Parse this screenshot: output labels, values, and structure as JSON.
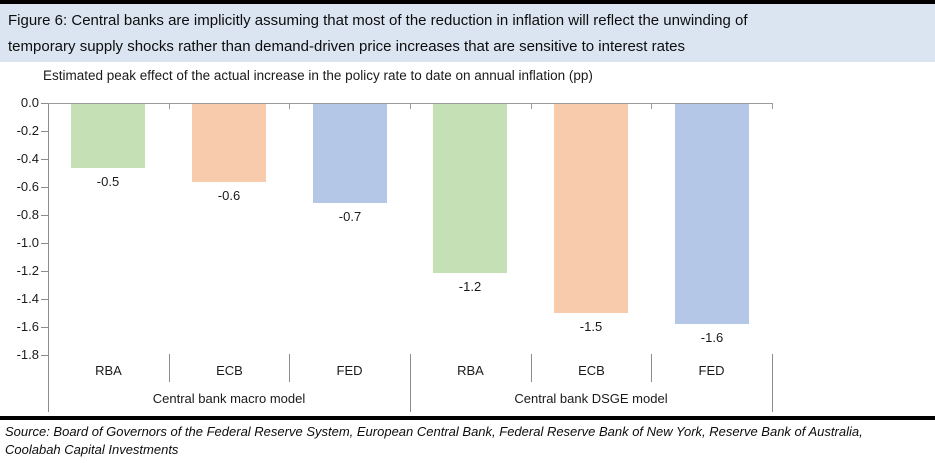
{
  "figure": {
    "title_lines": [
      "Figure 6: Central banks are implicitly assuming that most of the reduction in inflation will reflect the unwinding of",
      "temporary supply shocks rather than demand-driven price increases that are sensitive to interest rates"
    ],
    "source_lines": [
      "Source:  Board of Governors of the Federal Reserve System, European Central Bank, Federal Reserve Bank of New York, Reserve Bank of Australia,",
      "Coolabah Capital Investments"
    ]
  },
  "chart_data": {
    "type": "bar",
    "title": "Estimated peak effect of the actual increase in the policy rate to date on annual inflation (pp)",
    "xlabel": "",
    "ylabel": "",
    "ylim": [
      0,
      -1.8
    ],
    "y_ticks": [
      "0.0",
      "-0.2",
      "-0.4",
      "-0.6",
      "-0.8",
      "-1.0",
      "-1.2",
      "-1.4",
      "-1.6",
      "-1.8"
    ],
    "grid": false,
    "legend": "none",
    "groups": [
      {
        "label": "Central bank macro model",
        "bars": [
          {
            "category": "RBA",
            "value": -0.5,
            "value_label": "-0.5",
            "bar_end": -0.46,
            "color_key": "green"
          },
          {
            "category": "ECB",
            "value": -0.6,
            "value_label": "-0.6",
            "bar_end": -0.56,
            "color_key": "orange"
          },
          {
            "category": "FED",
            "value": -0.7,
            "value_label": "-0.7",
            "bar_end": -0.71,
            "color_key": "blue"
          }
        ]
      },
      {
        "label": "Central bank DSGE model",
        "bars": [
          {
            "category": "RBA",
            "value": -1.2,
            "value_label": "-1.2",
            "bar_end": -1.21,
            "color_key": "green"
          },
          {
            "category": "ECB",
            "value": -1.5,
            "value_label": "-1.5",
            "bar_end": -1.49,
            "color_key": "orange"
          },
          {
            "category": "FED",
            "value": -1.6,
            "value_label": "-1.6",
            "bar_end": -1.57,
            "color_key": "blue"
          }
        ]
      }
    ],
    "colors": {
      "green": "#c5e0b4",
      "orange": "#f8cbad",
      "blue": "#b4c7e7",
      "title_bar_bg": "#dbe5f1",
      "axis": "#8c8c8c"
    }
  }
}
